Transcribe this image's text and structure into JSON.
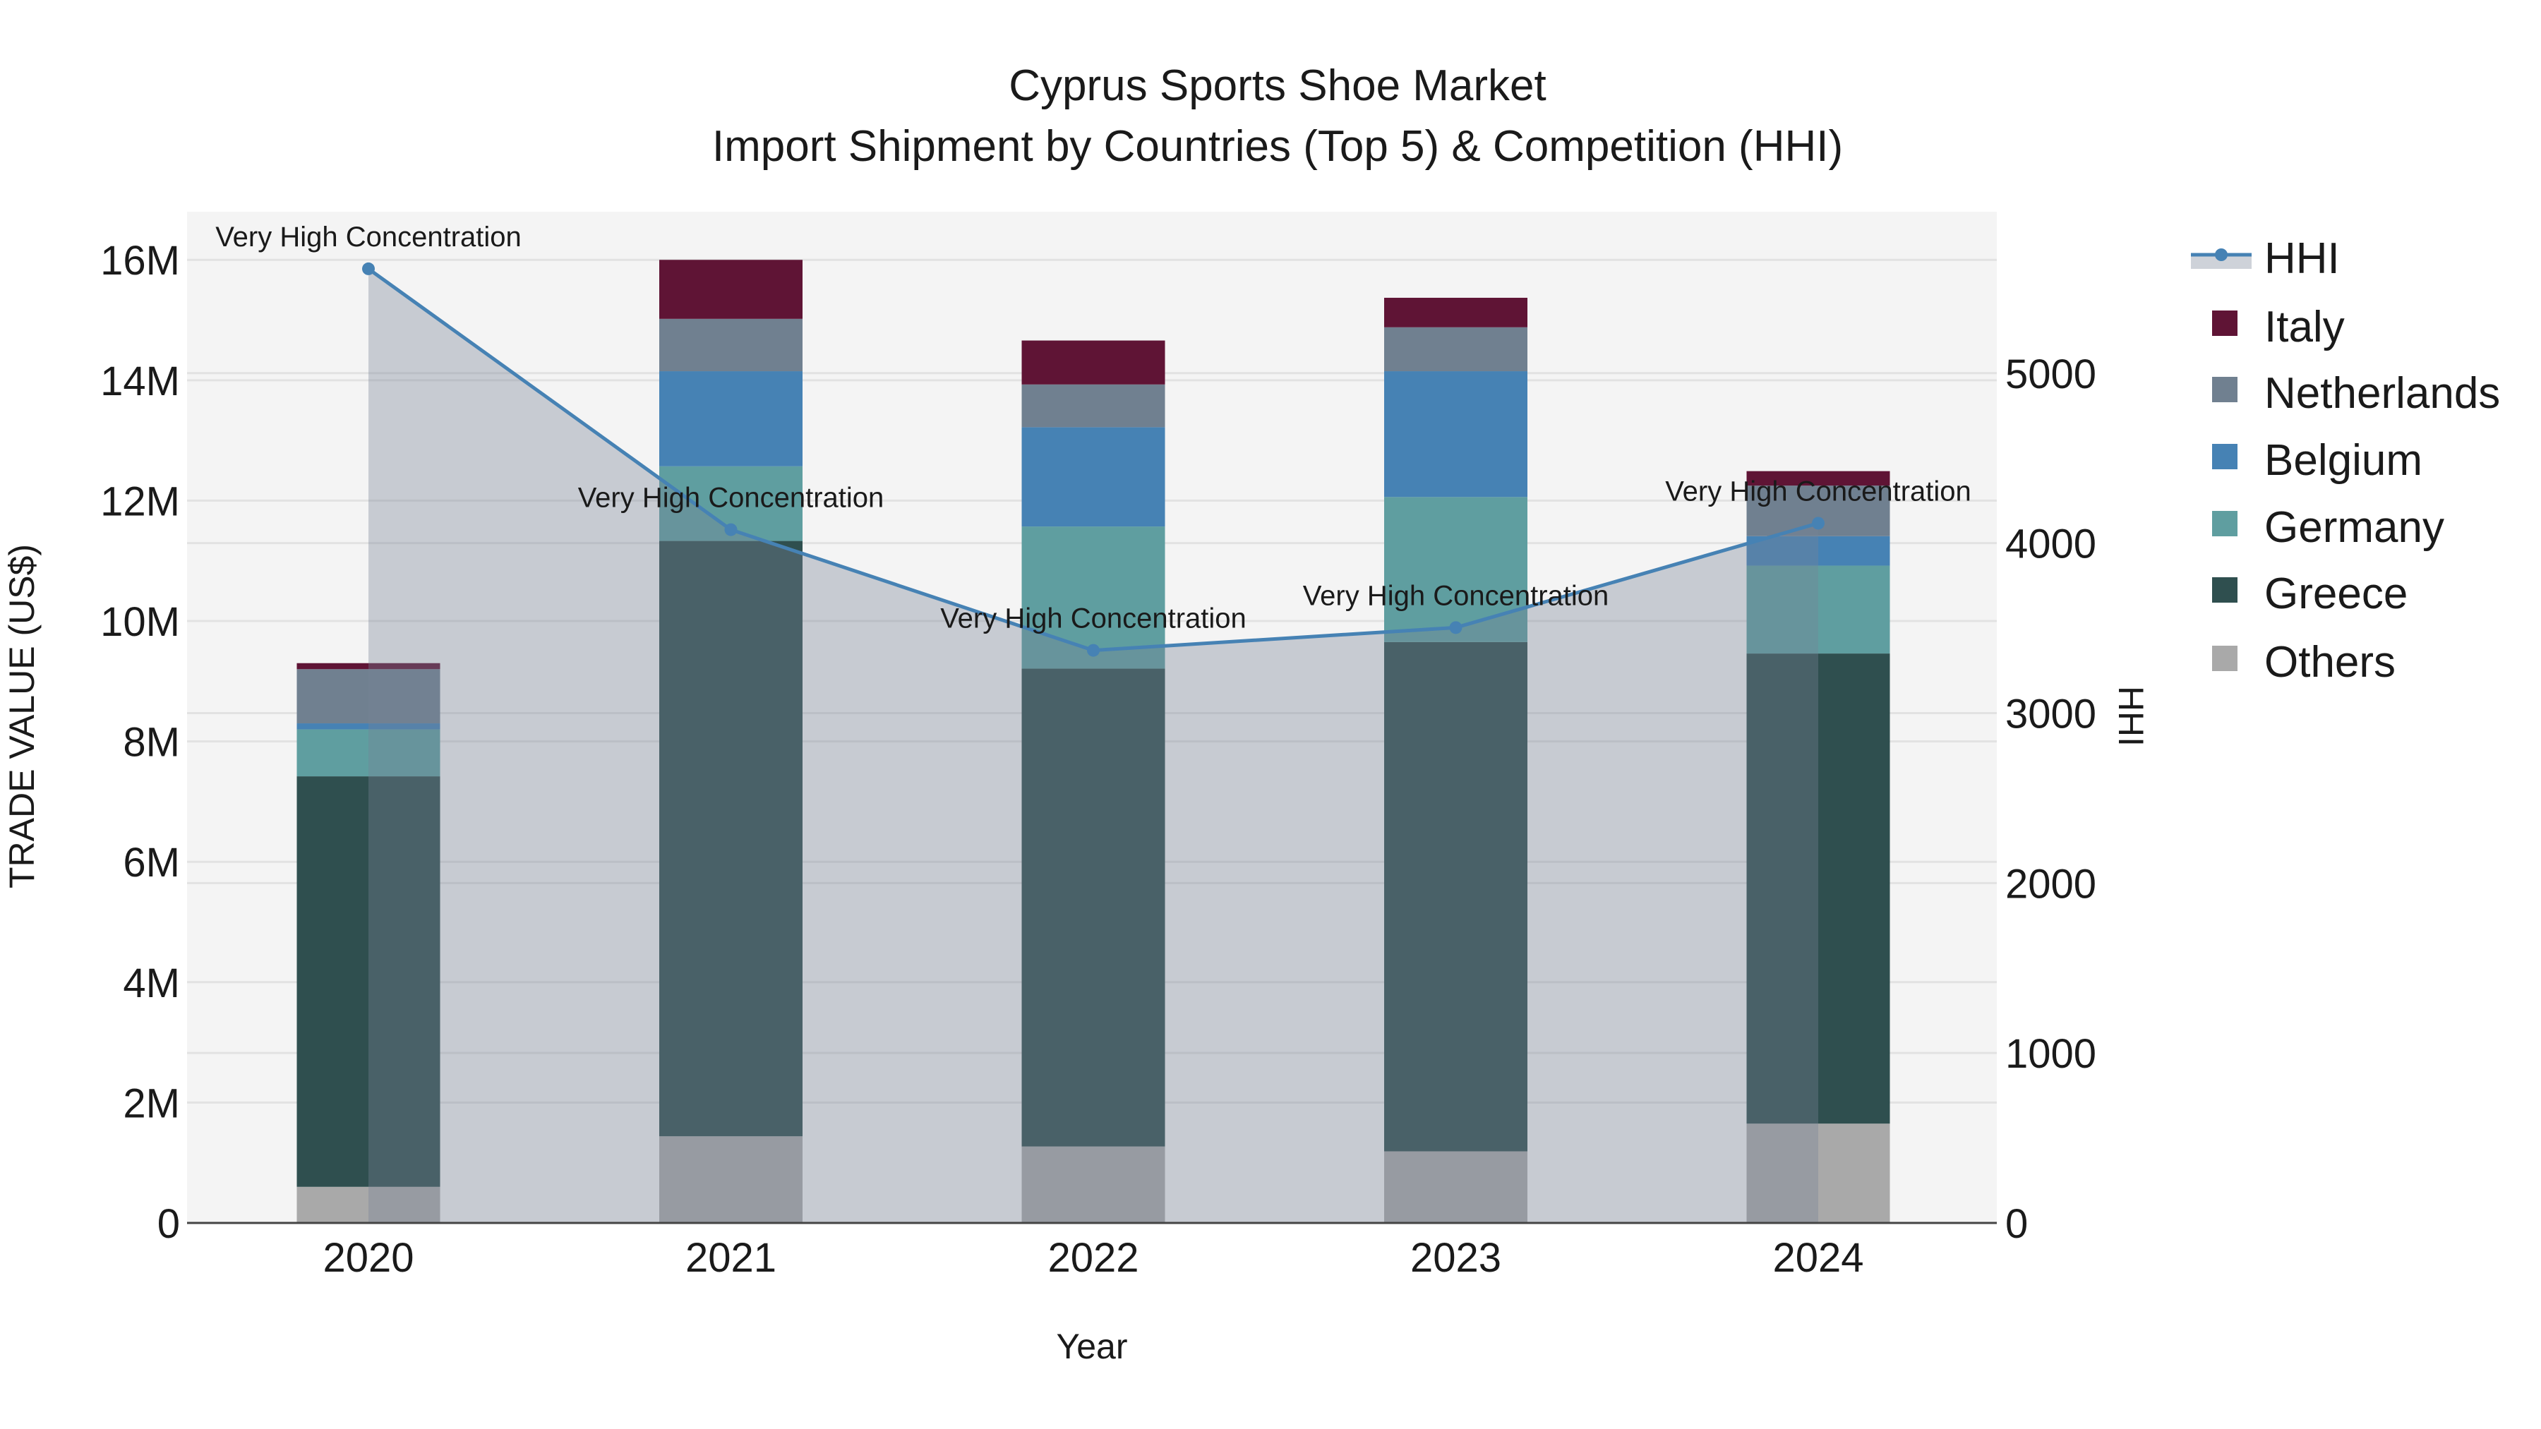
{
  "chart_data": {
    "type": "bar",
    "title": "Cyprus Sports Shoe Market",
    "subtitle": "Import Shipment by Countries (Top 5) & Competition (HHI)",
    "xlabel": "Year",
    "ylabel": "TRADE VALUE (US$)",
    "y2label": "HHI",
    "categories": [
      "2020",
      "2021",
      "2022",
      "2023",
      "2024"
    ],
    "ylim": [
      0,
      16800000
    ],
    "y_ticks": [
      0,
      2000000,
      4000000,
      6000000,
      8000000,
      10000000,
      12000000,
      14000000,
      16000000
    ],
    "y_tick_labels": [
      "0",
      "2M",
      "4M",
      "6M",
      "8M",
      "10M",
      "12M",
      "14M",
      "16M"
    ],
    "y2lim": [
      0,
      5950
    ],
    "y2_ticks": [
      0,
      1000,
      2000,
      3000,
      4000,
      5000
    ],
    "y2_tick_labels": [
      "0",
      "1000",
      "2000",
      "3000",
      "4000",
      "5000"
    ],
    "stacked": true,
    "grid": true,
    "legend_position": "right",
    "series": [
      {
        "name": "Others",
        "color": "#a9a9a9",
        "values": [
          600000,
          1440000,
          1270000,
          1190000,
          1650000
        ]
      },
      {
        "name": "Greece",
        "color": "#2f4f4f",
        "values": [
          6820000,
          9890000,
          7940000,
          8460000,
          7810000
        ]
      },
      {
        "name": "Germany",
        "color": "#5f9ea0",
        "values": [
          780000,
          1240000,
          2360000,
          2410000,
          1460000
        ]
      },
      {
        "name": "Belgium",
        "color": "#4682b4",
        "values": [
          100000,
          1580000,
          1650000,
          2090000,
          490000
        ]
      },
      {
        "name": "Netherlands",
        "color": "#708090",
        "values": [
          900000,
          870000,
          710000,
          730000,
          840000
        ]
      },
      {
        "name": "Italy",
        "color": "#5f1435",
        "values": [
          100000,
          980000,
          730000,
          490000,
          240000
        ]
      }
    ],
    "line": {
      "name": "HHI",
      "color": "#4682b4",
      "axis": "right",
      "values": [
        5614,
        4079,
        3369,
        3503,
        4117
      ],
      "annotations": [
        "Very High Concentration",
        "Very High Concentration",
        "Very High Concentration",
        "Very High Concentration",
        "Very High Concentration"
      ]
    },
    "legend": [
      "HHI",
      "Italy",
      "Netherlands",
      "Belgium",
      "Germany",
      "Greece",
      "Others"
    ]
  }
}
